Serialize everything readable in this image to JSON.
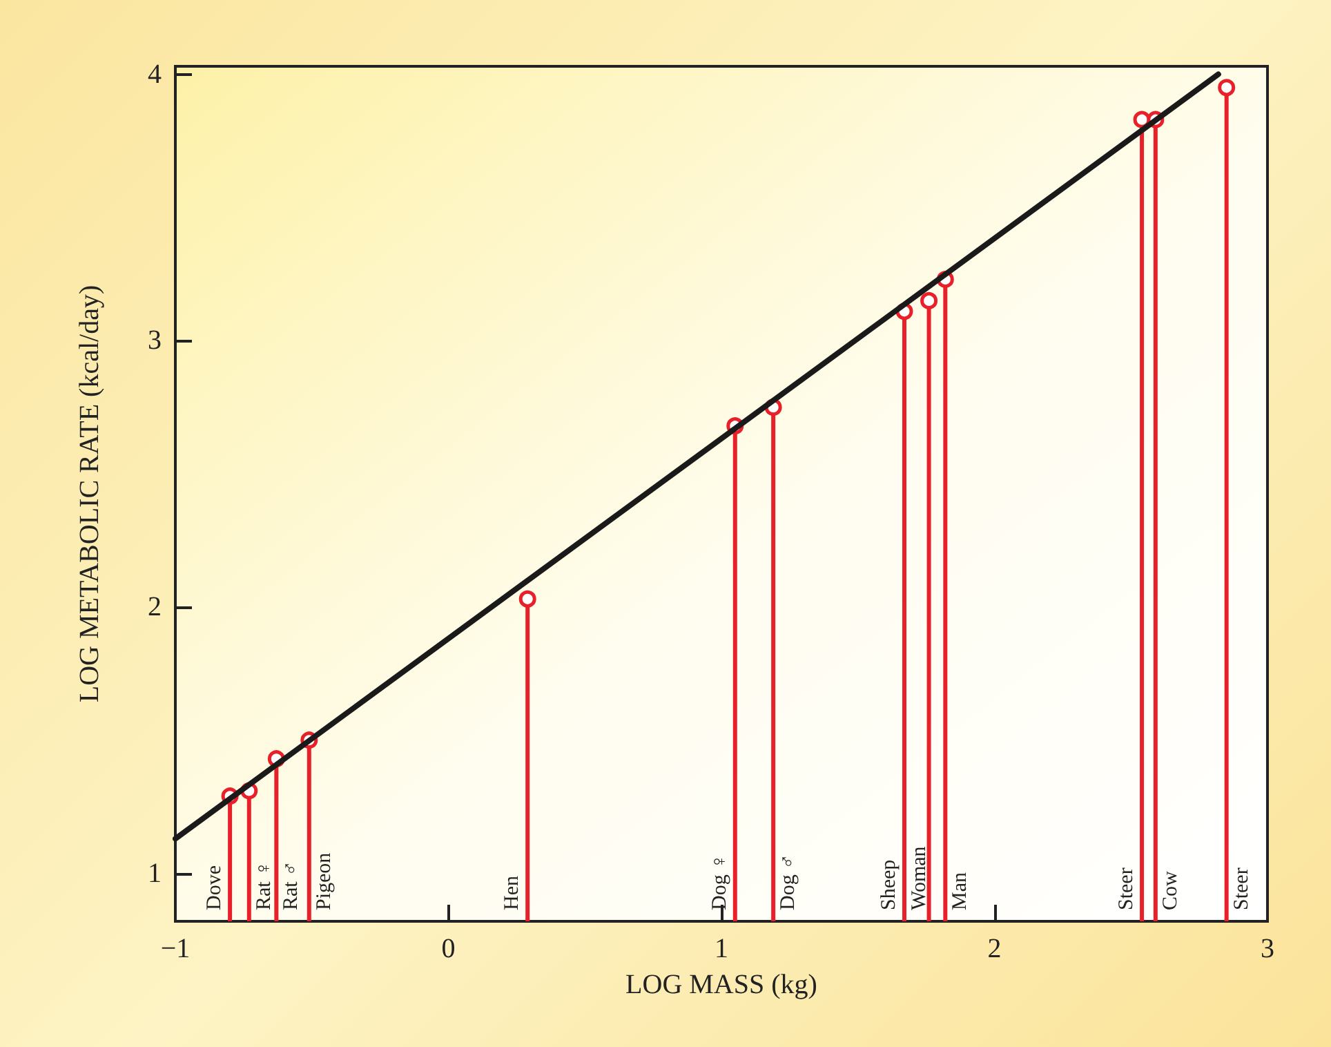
{
  "chart_data": {
    "type": "lollipop",
    "xlabel": "LOG MASS (kg)",
    "ylabel": "LOG METABOLIC RATE (kcal/day)",
    "xlim": [
      -1,
      3
    ],
    "ylim": [
      0.82,
      4.03
    ],
    "xticks": [
      {
        "value": -1,
        "label": "−1"
      },
      0,
      1,
      2,
      3
    ],
    "yticks": [
      1,
      2,
      3,
      4
    ],
    "series": [
      {
        "color": "#e8202a",
        "marker": "circle",
        "x": [
          -0.8,
          -0.73,
          -0.63,
          -0.51,
          0.29,
          1.05,
          1.19,
          1.67,
          1.76,
          1.82,
          2.54,
          2.59,
          2.85
        ],
        "values": [
          1.29,
          1.31,
          1.43,
          1.5,
          2.03,
          2.68,
          2.75,
          3.11,
          3.15,
          3.23,
          3.83,
          3.83,
          3.95
        ]
      },
      {
        "type": "line",
        "color": "#1a1a1a",
        "marker": "none",
        "line_style": "solid",
        "x": [
          -1,
          2.82
        ],
        "values": [
          1.13,
          4.0
        ]
      }
    ],
    "annotations": [
      "Dove",
      "Rat ♀",
      "Rat ♂",
      "Pigeon",
      "Hen",
      "Dog ♀",
      "Dog ♂",
      "Sheep",
      "Woman",
      "Man",
      "Steer",
      "Cow",
      "Steer"
    ]
  }
}
